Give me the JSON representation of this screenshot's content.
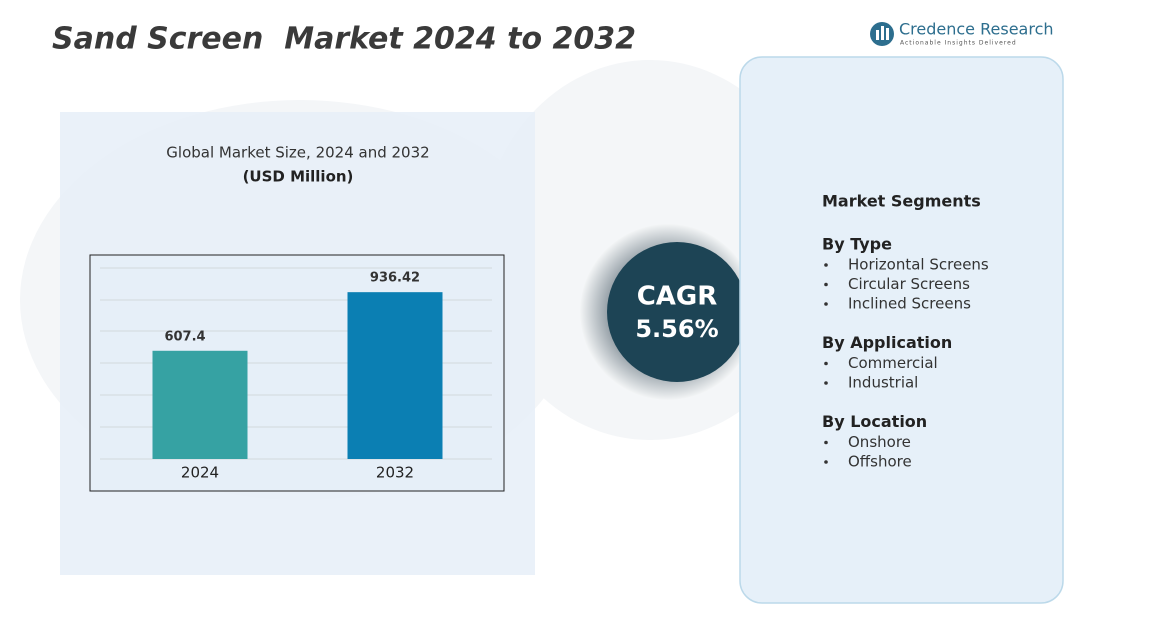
{
  "header": {
    "title": "Sand Screen  Market 2024 to 2032",
    "brand": "Credence Research",
    "tagline": "Actionable Insights Delivered"
  },
  "chart_data": {
    "type": "bar",
    "title": "Global Market Size, 2024 and 2032",
    "subtitle": "(USD Million)",
    "categories": [
      "2024",
      "2032"
    ],
    "series": [
      {
        "name": null,
        "colors": [
          "#36a2a3",
          "#0b7fb3"
        ],
        "values": [
          607.4,
          936.42
        ]
      }
    ]
  },
  "cagr": {
    "label": "CAGR",
    "value": "5.56%"
  },
  "segments": {
    "title": "Market Segments",
    "groups": [
      {
        "heading": "By Type",
        "items": [
          "Horizontal Screens",
          "Circular Screens",
          "Inclined Screens"
        ]
      },
      {
        "heading": "By Application",
        "items": [
          "Commercial",
          "Industrial"
        ]
      },
      {
        "heading": "By Location",
        "items": [
          "Onshore",
          "Offshore"
        ]
      }
    ]
  }
}
